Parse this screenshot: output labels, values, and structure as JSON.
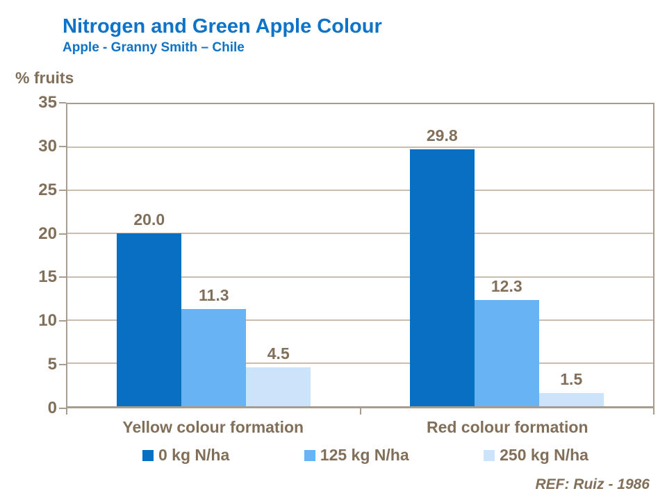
{
  "header": {
    "title": "Nitrogen and Green Apple Colour",
    "subtitle": "Apple - Granny Smith – Chile"
  },
  "footer": {
    "ref": "REF: Ruiz - 1986"
  },
  "colors": {
    "title_blue": "#0C73C8",
    "text_brown": "#816F5A",
    "gridline": "#C8BDAF",
    "axis_border": "#A89C8E",
    "series": [
      "#0770C0",
      "#68B3F4",
      "#CBE4F9"
    ]
  },
  "chart_data": {
    "type": "bar",
    "title": "Nitrogen and Green Apple Colour",
    "subtitle": "Apple - Granny Smith – Chile",
    "ylabel": "% fruits",
    "xlabel": "",
    "ylim": [
      0,
      35
    ],
    "ytick_step": 5,
    "grid": true,
    "legend_position": "bottom",
    "categories": [
      "Yellow colour formation",
      "Red colour formation"
    ],
    "series": [
      {
        "name": "0 kg N/ha",
        "values": [
          20.0,
          29.8
        ]
      },
      {
        "name": "125 kg N/ha",
        "values": [
          11.3,
          12.3
        ]
      },
      {
        "name": "250 kg N/ha",
        "values": [
          4.5,
          1.5
        ]
      }
    ]
  }
}
